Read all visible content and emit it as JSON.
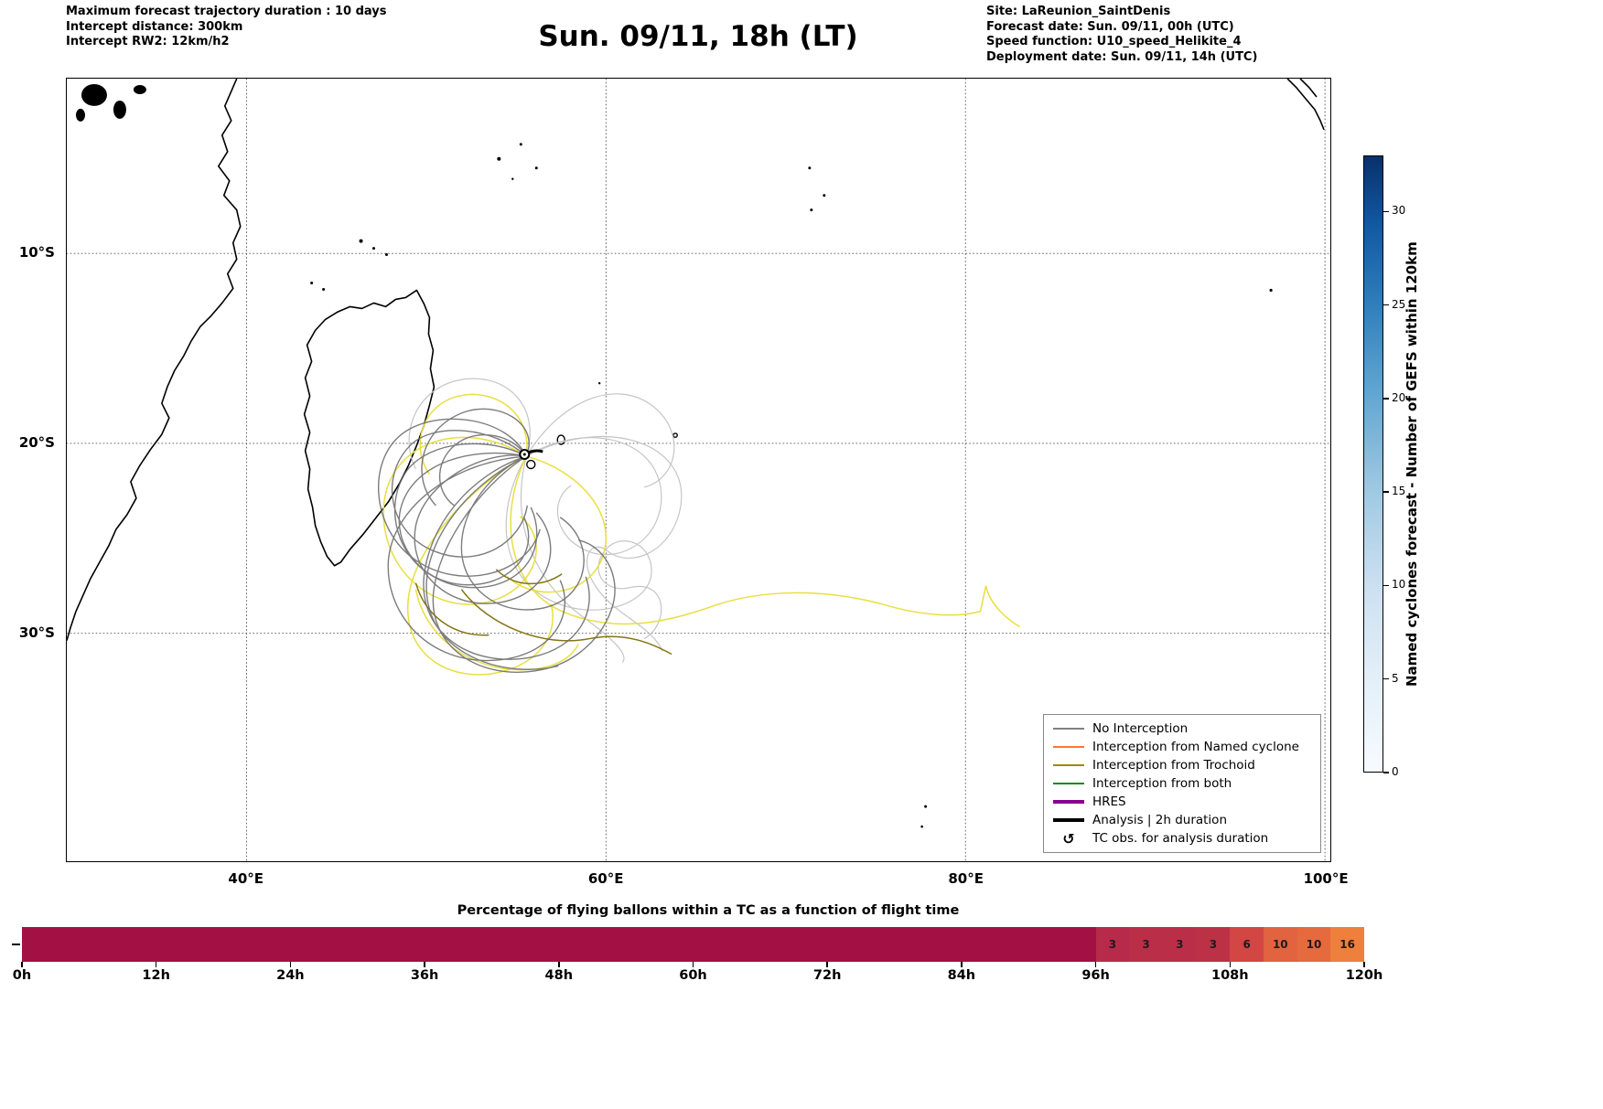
{
  "header": {
    "left_lines": [
      "Maximum forecast trajectory duration : 10 days",
      "Intercept distance: 300km",
      "Intercept RW2: 12km/h2"
    ],
    "title": "Sun. 09/11, 18h (LT)",
    "right_lines": [
      "Site: LaReunion_SaintDenis",
      "Forecast date: Sun. 09/11, 00h (UTC)",
      "Speed function: U10_speed_Helikite_4",
      "Deployment date: Sun. 09/11, 14h (UTC)"
    ]
  },
  "map": {
    "lon_range": [
      30.0,
      100.3
    ],
    "lat_range": [
      -42.0,
      -0.8
    ],
    "lon_gridlines": [
      {
        "value": 40,
        "label": "40°E"
      },
      {
        "value": 60,
        "label": "60°E"
      },
      {
        "value": 80,
        "label": "80°E"
      },
      {
        "value": 100,
        "label": "100°E"
      }
    ],
    "lat_gridlines": [
      {
        "value": -10,
        "label": "10°S"
      },
      {
        "value": -20,
        "label": "20°S"
      },
      {
        "value": -30,
        "label": "30°S"
      }
    ],
    "site_marker": {
      "name": "LaReunion_SaintDenis",
      "lon": 55.5,
      "lat": -21.0
    }
  },
  "colors": {
    "trajectory_gray": "#6b6b6b",
    "trajectory_light_gray": "#c2c2c2",
    "trajectory_yellow": "#e8df3e",
    "trajectory_olive": "#857413",
    "analysis_black": "#000000"
  },
  "colorbar": {
    "label": "Named cyclones forecast - Number of GEFS within 120km",
    "vmin": 0,
    "vmax": 33,
    "ticks": [
      0,
      5,
      10,
      15,
      20,
      25,
      30
    ]
  },
  "legend": {
    "items": [
      {
        "label": "No Interception",
        "color": "#808080",
        "lw": 1.5
      },
      {
        "label": "Interception from Named cyclone",
        "color": "#ff7733",
        "lw": 1.5
      },
      {
        "label": "Interception from Trochoid",
        "color": "#9a8a10",
        "lw": 1.5
      },
      {
        "label": "Interception from both",
        "color": "#1a8a1a",
        "lw": 1.5
      },
      {
        "label": "HRES",
        "color": "#8a008a",
        "lw": 3.5
      },
      {
        "label": "Analysis | 2h duration",
        "color": "#000000",
        "lw": 3.5
      },
      {
        "label": "TC obs. for analysis duration",
        "symbol": "↺"
      }
    ]
  },
  "chart_data": {
    "type": "bar",
    "title": "Percentage of flying ballons within a TC as a function of flight time",
    "xlim": [
      0,
      120
    ],
    "x_ticks": [
      "0h",
      "12h",
      "24h",
      "36h",
      "48h",
      "60h",
      "72h",
      "84h",
      "96h",
      "108h",
      "120h"
    ],
    "segments": [
      {
        "from": 0,
        "to": 96,
        "value": 0,
        "label": "",
        "color": "#a31043"
      },
      {
        "from": 96,
        "to": 99,
        "value": 3,
        "label": "3",
        "color": "#b72a49"
      },
      {
        "from": 99,
        "to": 102,
        "value": 3,
        "label": "3",
        "color": "#bb2e48"
      },
      {
        "from": 102,
        "to": 105,
        "value": 3,
        "label": "3",
        "color": "#bb2e48"
      },
      {
        "from": 105,
        "to": 108,
        "value": 3,
        "label": "3",
        "color": "#bd3147"
      },
      {
        "from": 108,
        "to": 111,
        "value": 6,
        "label": "6",
        "color": "#d24644"
      },
      {
        "from": 111,
        "to": 114,
        "value": 10,
        "label": "10",
        "color": "#e2633f"
      },
      {
        "from": 114,
        "to": 117,
        "value": 10,
        "label": "10",
        "color": "#e56a3e"
      },
      {
        "from": 117,
        "to": 120,
        "value": 16,
        "label": "16",
        "color": "#ef7f3c"
      }
    ]
  }
}
